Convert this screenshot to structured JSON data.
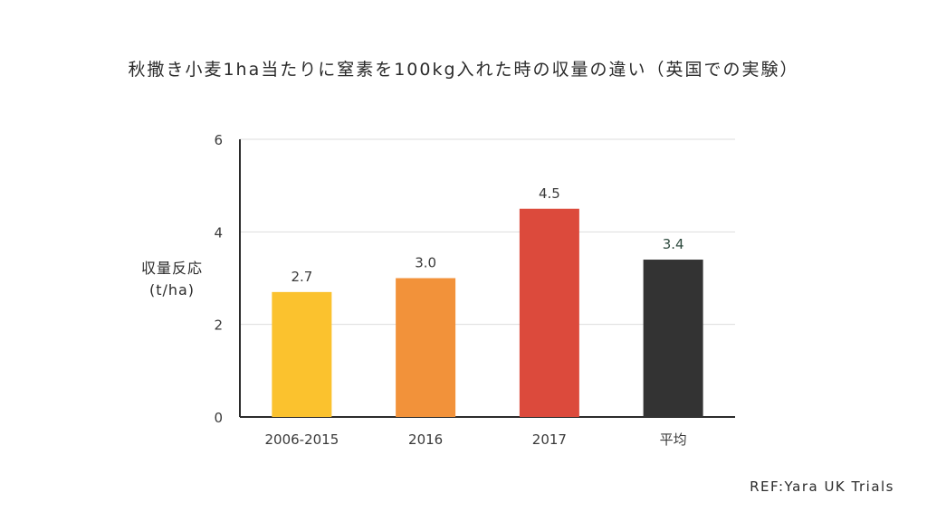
{
  "chart_data": {
    "type": "bar",
    "title": "秋撒き小麦1ha当たりに窒素を100kg入れた時の収量の違い（英国での実験）",
    "ylabel_line1": "収量反応",
    "ylabel_line2": "(t/ha)",
    "xlabel": "",
    "categories": [
      "2006-2015",
      "2016",
      "2017",
      "平均"
    ],
    "values": [
      2.7,
      3.0,
      4.5,
      3.4
    ],
    "value_labels": [
      "2.7",
      "3.0",
      "4.5",
      "3.4"
    ],
    "bar_colors": [
      "#fbc22e",
      "#f2923a",
      "#dc4a3c",
      "#333333"
    ],
    "value_label_colors": [
      "#3a3a3a",
      "#3a3a3a",
      "#3a3a3a",
      "#2e4a3e"
    ],
    "ylim": [
      0,
      6
    ],
    "yticks": [
      0,
      2,
      4,
      6
    ],
    "grid": true,
    "legend": "none"
  },
  "source": "REF:Yara UK Trials"
}
